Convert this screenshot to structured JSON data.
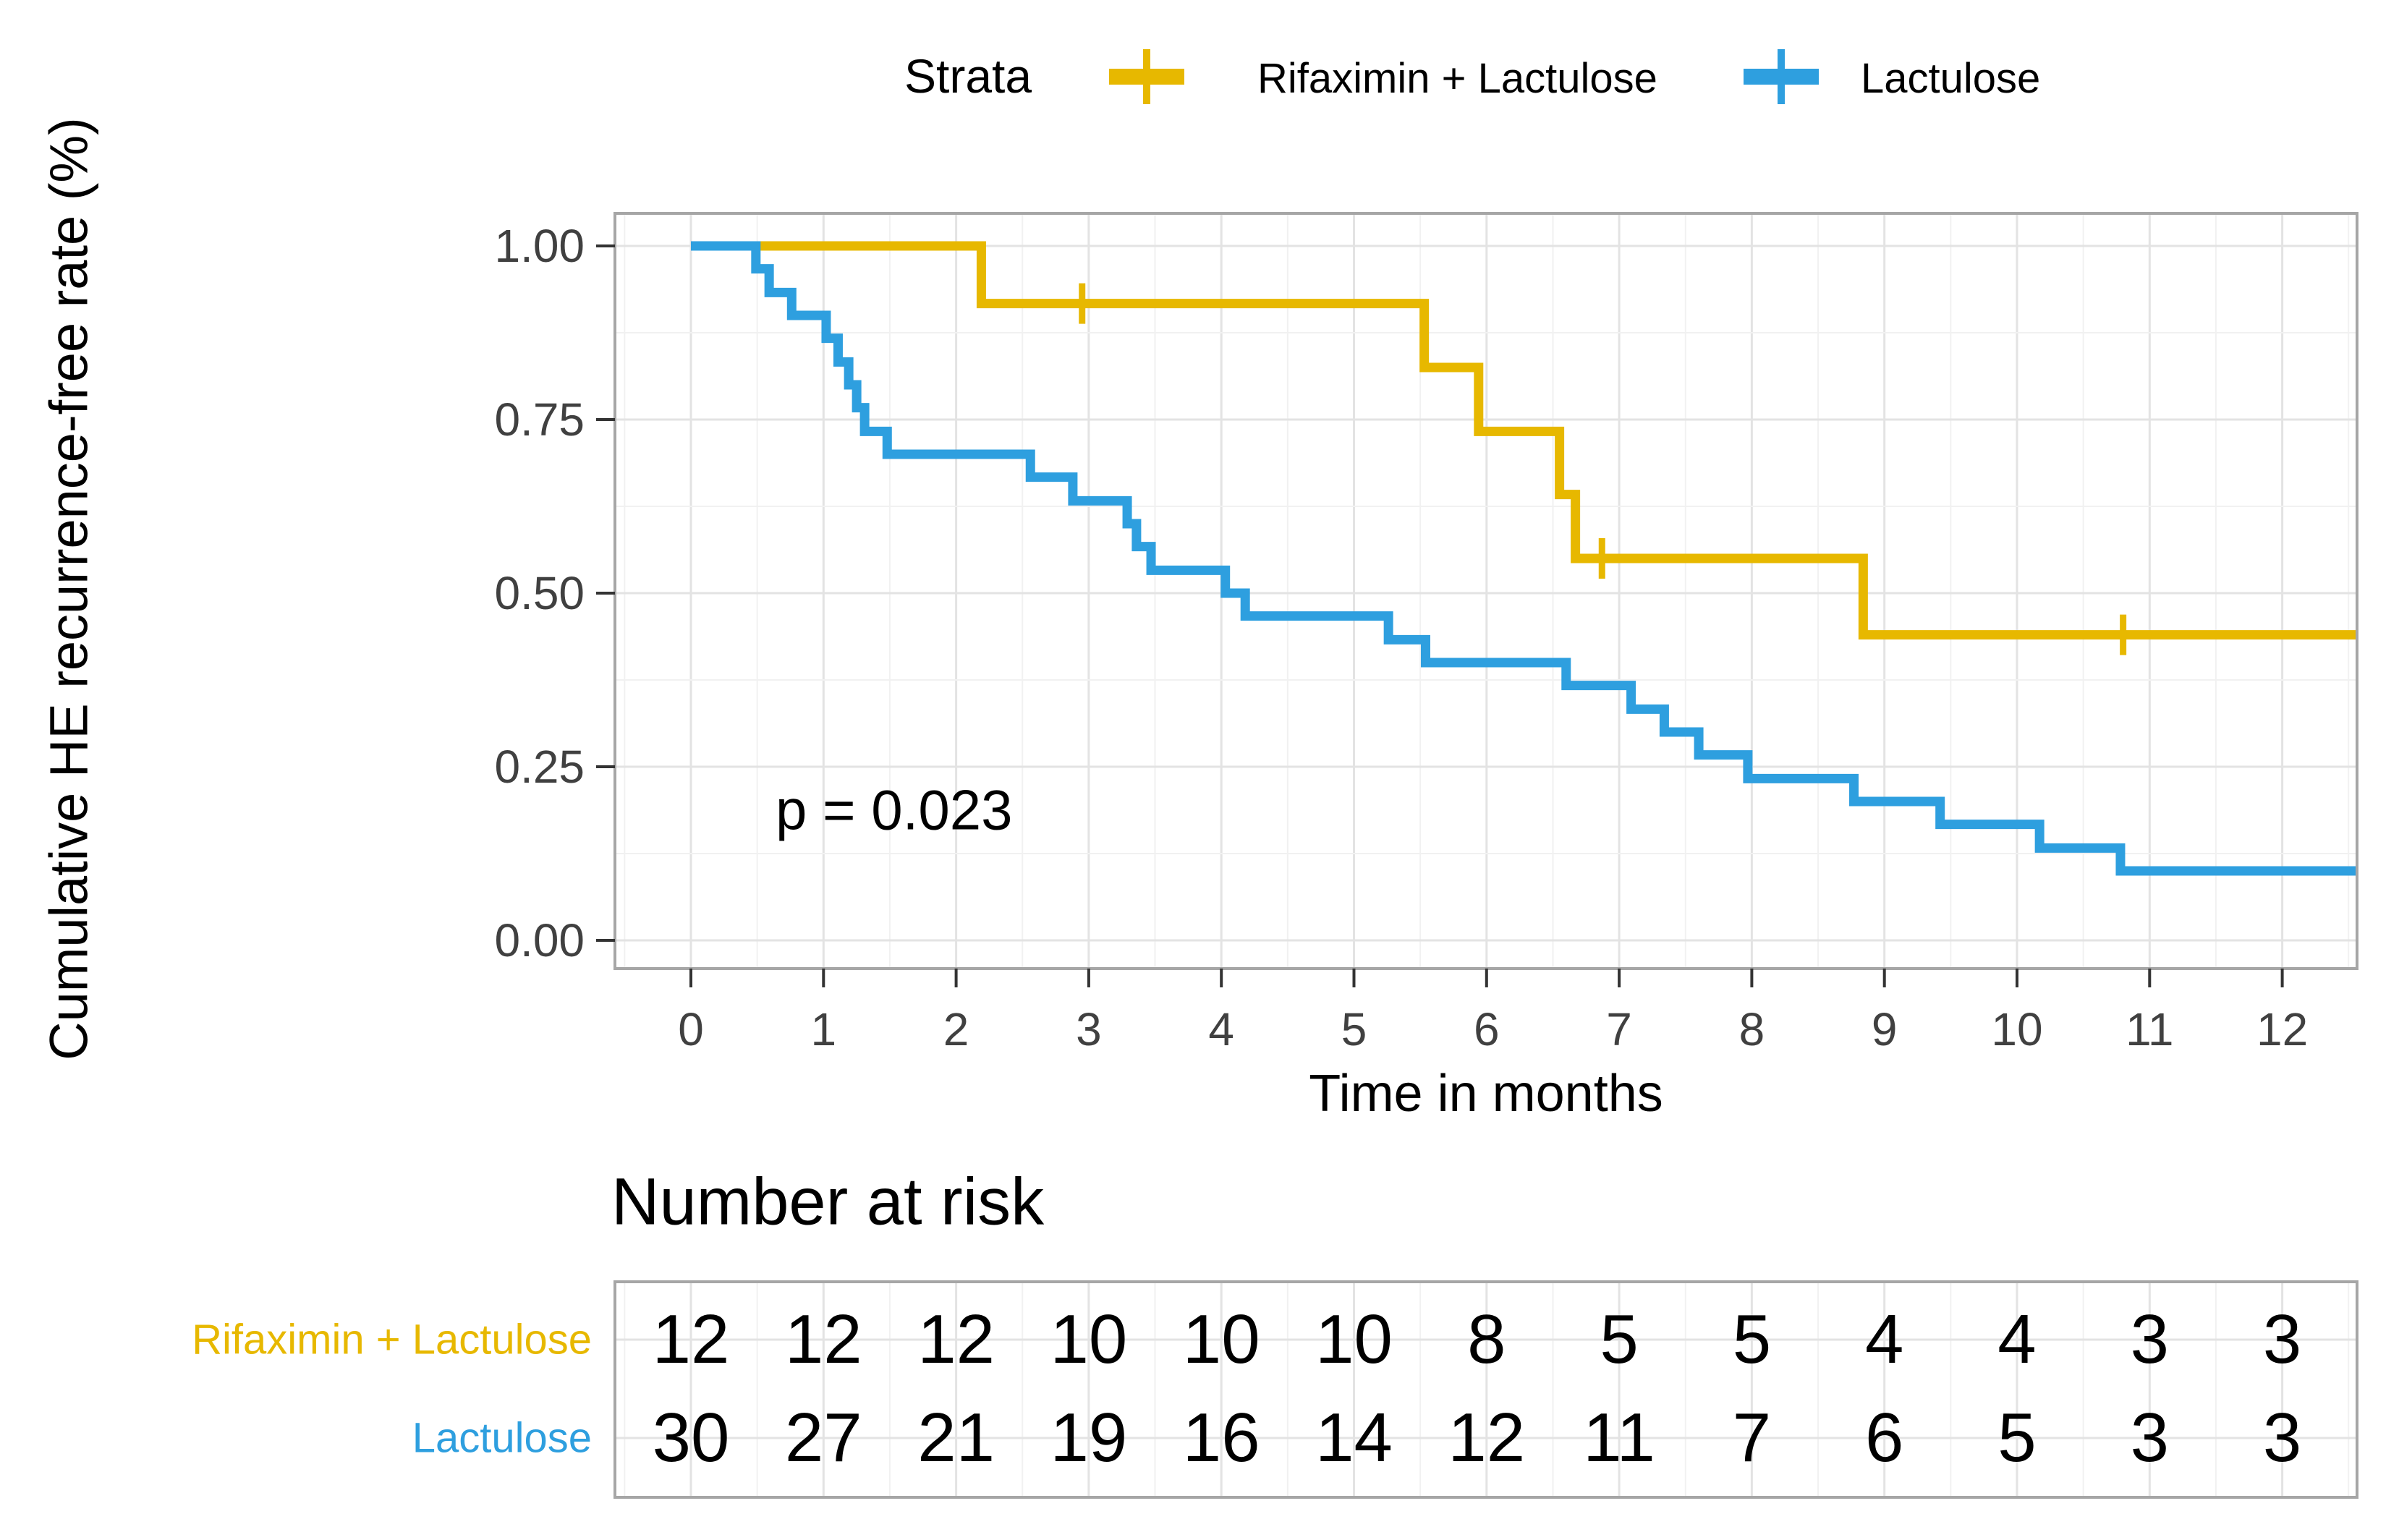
{
  "legend": {
    "title": "Strata",
    "items": [
      {
        "label": "Rifaximin + Lactulose",
        "color": "#E7B800"
      },
      {
        "label": "Lactulose",
        "color": "#2E9FDF"
      }
    ]
  },
  "axes": {
    "y_title": "Cumulative HE recurrence-free rate (%)",
    "x_title": "Time in months",
    "y_ticks": [
      {
        "label": "1.00",
        "value": 1.0
      },
      {
        "label": "0.75",
        "value": 0.75
      },
      {
        "label": "0.50",
        "value": 0.5
      },
      {
        "label": "0.25",
        "value": 0.25
      },
      {
        "label": "0.00",
        "value": 0.0
      }
    ],
    "x_ticks": [
      0,
      1,
      2,
      3,
      4,
      5,
      6,
      7,
      8,
      9,
      10,
      11,
      12
    ]
  },
  "annotation": {
    "p_value": "p = 0.023"
  },
  "chart_data": {
    "type": "line",
    "subtype": "kaplan-meier-step",
    "title": "",
    "xlabel": "Time in months",
    "ylabel": "Cumulative HE recurrence-free rate (%)",
    "xlim": [
      -0.57,
      12.57
    ],
    "ylim": [
      -0.04,
      1.05
    ],
    "x_ticks": [
      0,
      1,
      2,
      3,
      4,
      5,
      6,
      7,
      8,
      9,
      10,
      11,
      12
    ],
    "y_ticks": [
      0,
      0.25,
      0.5,
      0.75,
      1.0
    ],
    "grid": true,
    "legend_position": "top",
    "p_value": "p = 0.023",
    "series": [
      {
        "name": "Rifaximin + Lactulose",
        "color": "#E7B800",
        "steps": [
          [
            0,
            1.0
          ],
          [
            2.19,
            0.917
          ],
          [
            5.53,
            0.825
          ],
          [
            5.94,
            0.733
          ],
          [
            6.55,
            0.642
          ],
          [
            6.67,
            0.55
          ],
          [
            8.84,
            0.44
          ]
        ],
        "end_time": 12.57,
        "censor_marks": [
          [
            2.95,
            0.917
          ],
          [
            6.87,
            0.55
          ],
          [
            10.8,
            0.44
          ]
        ]
      },
      {
        "name": "Lactulose",
        "color": "#2E9FDF",
        "steps": [
          [
            0,
            1.0
          ],
          [
            0.49,
            0.967
          ],
          [
            0.59,
            0.933
          ],
          [
            0.76,
            0.9
          ],
          [
            1.02,
            0.867
          ],
          [
            1.11,
            0.833
          ],
          [
            1.19,
            0.8
          ],
          [
            1.25,
            0.767
          ],
          [
            1.31,
            0.733
          ],
          [
            1.48,
            0.7
          ],
          [
            2.56,
            0.667
          ],
          [
            2.88,
            0.633
          ],
          [
            3.29,
            0.6
          ],
          [
            3.36,
            0.567
          ],
          [
            3.47,
            0.533
          ],
          [
            4.03,
            0.5
          ],
          [
            4.18,
            0.467
          ],
          [
            5.26,
            0.433
          ],
          [
            5.54,
            0.4
          ],
          [
            6.6,
            0.367
          ],
          [
            7.09,
            0.333
          ],
          [
            7.34,
            0.3
          ],
          [
            7.6,
            0.267
          ],
          [
            7.97,
            0.233
          ],
          [
            8.77,
            0.2
          ],
          [
            9.42,
            0.167
          ],
          [
            10.17,
            0.133
          ],
          [
            10.78,
            0.1
          ]
        ],
        "end_time": 12.57,
        "censor_marks": []
      }
    ]
  },
  "risk_table": {
    "title": "Number at risk",
    "time_points": [
      0,
      1,
      2,
      3,
      4,
      5,
      6,
      7,
      8,
      9,
      10,
      11,
      12
    ],
    "rows": [
      {
        "label": "Rifaximin + Lactulose",
        "color": "#E7B800",
        "values": [
          12,
          12,
          12,
          10,
          10,
          10,
          8,
          5,
          5,
          4,
          4,
          3,
          3
        ]
      },
      {
        "label": "Lactulose",
        "color": "#2E9FDF",
        "values": [
          30,
          27,
          21,
          19,
          16,
          14,
          12,
          11,
          7,
          6,
          5,
          3,
          3
        ]
      }
    ]
  }
}
